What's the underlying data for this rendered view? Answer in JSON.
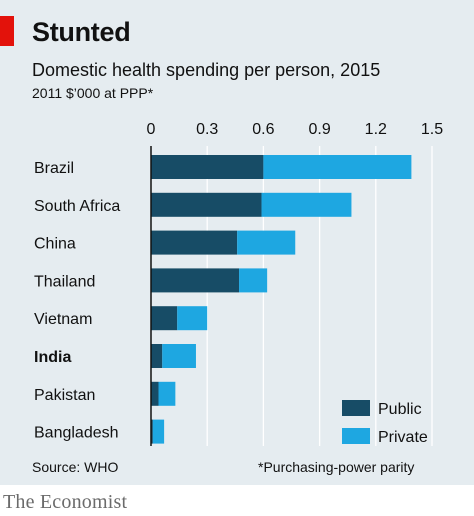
{
  "header": {
    "title": "Stunted",
    "subtitle": "Domestic health spending per person, 2015",
    "unit": "2011 $’000 at PPP*"
  },
  "footer": {
    "source": "Source: WHO",
    "footnote": "*Purchasing-power parity",
    "brand": "The Economist"
  },
  "colors": {
    "public": "#174c66",
    "private": "#1ea7e1",
    "grid": "#ffffff",
    "background": "#e5ecf0",
    "accent": "#e3120b"
  },
  "chart_data": {
    "type": "bar",
    "orientation": "horizontal",
    "stacked": true,
    "title": "Stunted",
    "subtitle": "Domestic health spending per person, 2015",
    "unit": "2011 $’000 at PPP*",
    "categories": [
      "Brazil",
      "South Africa",
      "China",
      "Thailand",
      "Vietnam",
      "India",
      "Pakistan",
      "Bangladesh"
    ],
    "highlight": "India",
    "series": [
      {
        "name": "Public",
        "values": [
          0.6,
          0.59,
          0.46,
          0.47,
          0.14,
          0.06,
          0.04,
          0.01
        ]
      },
      {
        "name": "Private",
        "values": [
          0.79,
          0.48,
          0.31,
          0.15,
          0.16,
          0.18,
          0.09,
          0.06
        ]
      }
    ],
    "xlim": [
      0,
      1.5
    ],
    "xticks": [
      "0",
      "0.3",
      "0.6",
      "0.9",
      "1.2",
      "1.5"
    ],
    "xtick_values": [
      0,
      0.3,
      0.6,
      0.9,
      1.2,
      1.5
    ],
    "grid": true,
    "legend_position": "bottom-right",
    "source": "Source: WHO",
    "footnote": "*Purchasing-power parity"
  }
}
